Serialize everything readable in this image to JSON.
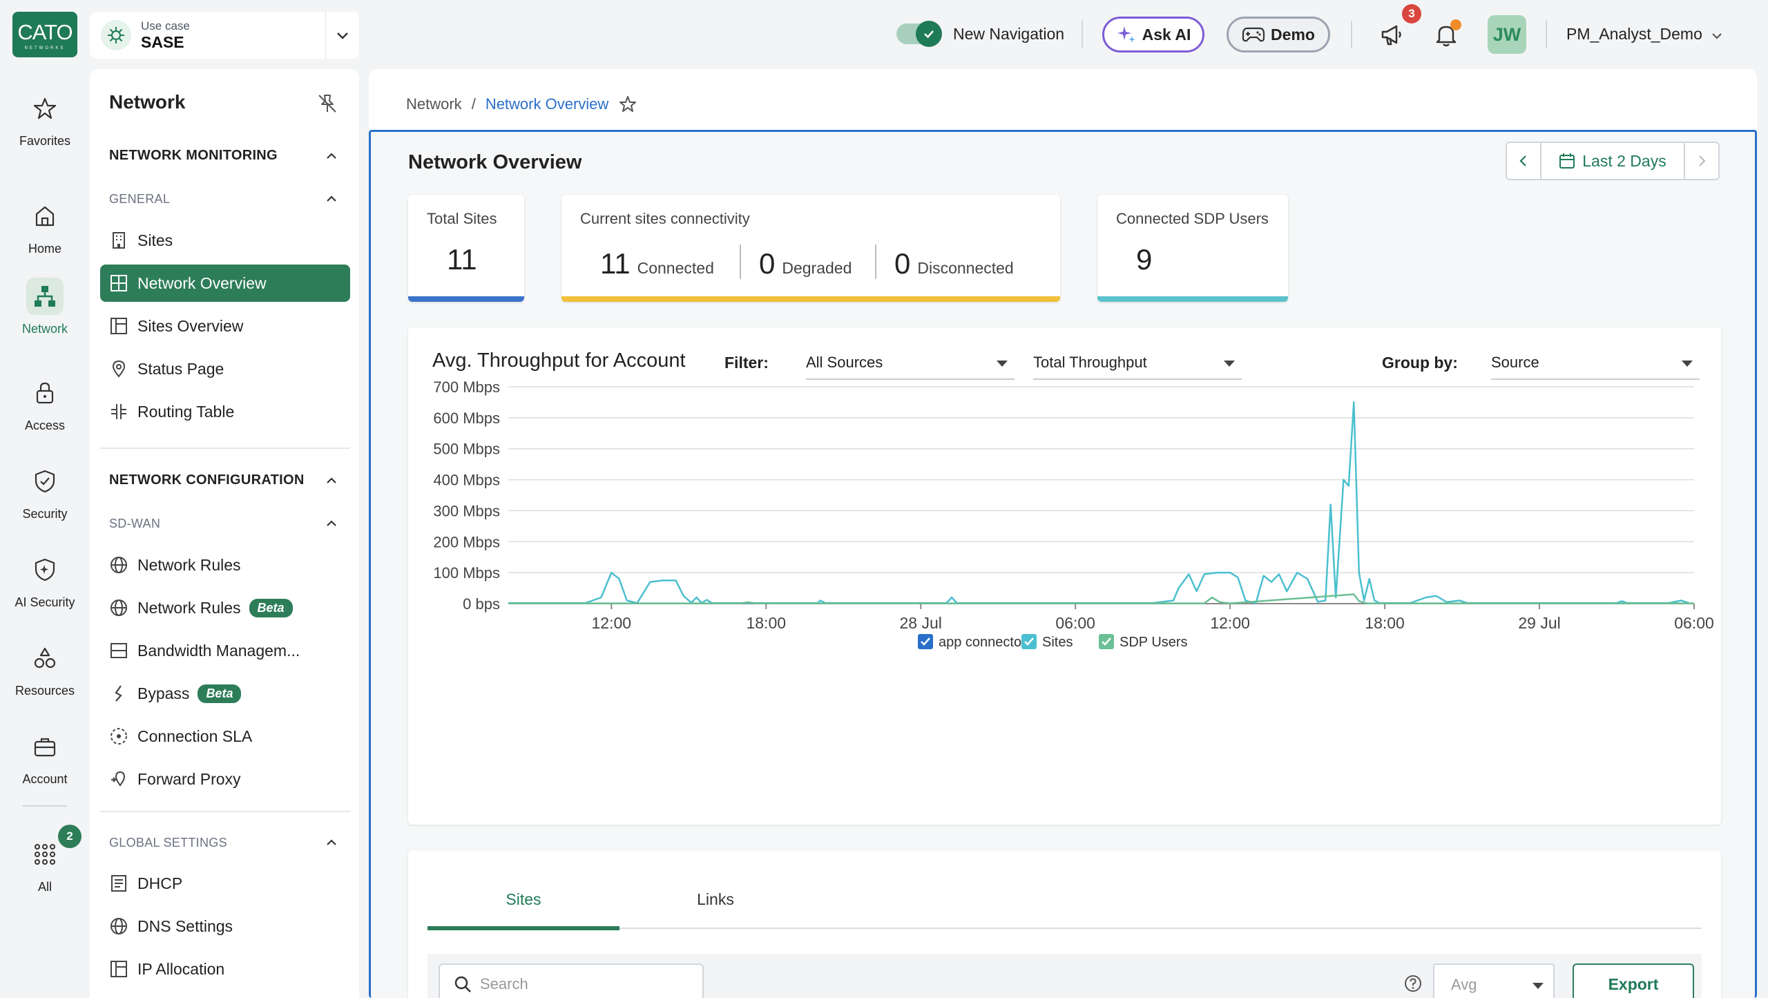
{
  "logo": {
    "text": "CATO",
    "sub": "NETWORKS"
  },
  "usecase": {
    "label": "Use case",
    "value": "SASE"
  },
  "header": {
    "new_navigation_label": "New Navigation",
    "ask_ai_label": "Ask AI",
    "demo_label": "Demo",
    "announcements_badge": "3",
    "avatar_initials": "JW",
    "username": "PM_Analyst_Demo"
  },
  "rail": {
    "items": [
      {
        "label": "Favorites",
        "icon": "star-icon"
      },
      {
        "label": "Home",
        "icon": "home-icon"
      },
      {
        "label": "Network",
        "icon": "network-icon"
      },
      {
        "label": "Access",
        "icon": "lock-icon"
      },
      {
        "label": "Security",
        "icon": "shield-icon"
      },
      {
        "label": "AI Security",
        "icon": "ai-shield-icon"
      },
      {
        "label": "Resources",
        "icon": "resources-icon"
      },
      {
        "label": "Account",
        "icon": "briefcase-icon"
      },
      {
        "label": "All",
        "icon": "grid-icon"
      }
    ],
    "all_badge": "2"
  },
  "sidebar": {
    "title": "Network",
    "monitoring_heading": "NETWORK MONITORING",
    "general_heading": "GENERAL",
    "general_items": [
      {
        "label": "Sites"
      },
      {
        "label": "Network Overview"
      },
      {
        "label": "Sites Overview"
      },
      {
        "label": "Status Page"
      },
      {
        "label": "Routing Table"
      }
    ],
    "config_heading": "NETWORK CONFIGURATION",
    "sdwan_heading": "SD-WAN",
    "sdwan_items": [
      {
        "label": "Network Rules"
      },
      {
        "label": "Network Rules",
        "badge": "Beta"
      },
      {
        "label": "Bandwidth Managem..."
      },
      {
        "label": "Bypass",
        "badge": "Beta"
      },
      {
        "label": "Connection SLA"
      },
      {
        "label": "Forward Proxy"
      }
    ],
    "global_heading": "GLOBAL SETTINGS",
    "global_items": [
      {
        "label": "DHCP"
      },
      {
        "label": "DNS Settings"
      },
      {
        "label": "IP Allocation"
      }
    ]
  },
  "breadcrumb": {
    "parent": "Network",
    "separator": "/",
    "current": "Network Overview"
  },
  "page": {
    "title": "Network Overview",
    "date_range": "Last 2 Days"
  },
  "cards": {
    "total_sites_title": "Total Sites",
    "total_sites_value": "11",
    "connectivity_title": "Current sites connectivity",
    "connected_value": "11",
    "connected_label": "Connected",
    "degraded_value": "0",
    "degraded_label": "Degraded",
    "disconnected_value": "0",
    "disconnected_label": "Disconnected",
    "sdp_title": "Connected SDP Users",
    "sdp_value": "9"
  },
  "throughput": {
    "title": "Avg. Throughput for Account",
    "filter_label": "Filter:",
    "filter_value": "All Sources",
    "metric_value": "Total Throughput",
    "groupby_label": "Group by:",
    "groupby_value": "Source"
  },
  "chart_data": {
    "type": "line",
    "title": "Avg. Throughput for Account",
    "ylabel": "",
    "xlabel": "",
    "ylim": [
      0,
      700
    ],
    "y_unit": "Mbps",
    "y_ticks": [
      "0 bps",
      "100 Mbps",
      "200 Mbps",
      "300 Mbps",
      "400 Mbps",
      "500 Mbps",
      "600 Mbps",
      "700 Mbps"
    ],
    "x_ticks": [
      "12:00",
      "18:00",
      "28 Jul",
      "06:00",
      "12:00",
      "18:00",
      "29 Jul",
      "06:00"
    ],
    "grid": true,
    "legend_position": "bottom",
    "series": [
      {
        "name": "app connector",
        "color": "#2a6fc9",
        "checked": true,
        "values": []
      },
      {
        "name": "Sites",
        "color": "#4bbfcf",
        "checked": true,
        "points_hours": [
          [
            0,
            2
          ],
          [
            3,
            2
          ],
          [
            3.6,
            20
          ],
          [
            4,
            100
          ],
          [
            4.3,
            80
          ],
          [
            4.6,
            10
          ],
          [
            5,
            2
          ],
          [
            5.5,
            70
          ],
          [
            6,
            75
          ],
          [
            6.5,
            75
          ],
          [
            6.8,
            25
          ],
          [
            7.1,
            3
          ],
          [
            7.3,
            20
          ],
          [
            7.5,
            2
          ],
          [
            7.7,
            12
          ],
          [
            7.9,
            2
          ],
          [
            9,
            2
          ],
          [
            12,
            2
          ],
          [
            12.1,
            10
          ],
          [
            12.3,
            2
          ],
          [
            17,
            2
          ],
          [
            17.2,
            20
          ],
          [
            17.4,
            2
          ],
          [
            25,
            2
          ],
          [
            25.8,
            10
          ],
          [
            26,
            50
          ],
          [
            26.4,
            95
          ],
          [
            26.7,
            40
          ],
          [
            27,
            95
          ],
          [
            27.5,
            100
          ],
          [
            28,
            100
          ],
          [
            28.3,
            85
          ],
          [
            28.6,
            10
          ],
          [
            28.8,
            5
          ],
          [
            29,
            2
          ],
          [
            29.3,
            90
          ],
          [
            29.6,
            70
          ],
          [
            29.9,
            95
          ],
          [
            30.2,
            40
          ],
          [
            30.6,
            100
          ],
          [
            31,
            80
          ],
          [
            31.4,
            6
          ],
          [
            31.7,
            10
          ],
          [
            31.9,
            320
          ],
          [
            32.1,
            20
          ],
          [
            32.4,
            400
          ],
          [
            32.6,
            380
          ],
          [
            32.8,
            650
          ],
          [
            33,
            100
          ],
          [
            33.2,
            10
          ],
          [
            33.4,
            80
          ],
          [
            33.6,
            10
          ],
          [
            33.8,
            2
          ],
          [
            35,
            2
          ],
          [
            35.6,
            20
          ],
          [
            36,
            25
          ],
          [
            36.4,
            5
          ],
          [
            36.9,
            10
          ],
          [
            37.2,
            2
          ],
          [
            43,
            2
          ],
          [
            43.2,
            8
          ],
          [
            43.4,
            2
          ],
          [
            45,
            2
          ],
          [
            45.5,
            10
          ],
          [
            45.8,
            2
          ]
        ]
      },
      {
        "name": "SDP Users",
        "color": "#6bbf94",
        "checked": true,
        "points_hours": [
          [
            0,
            1
          ],
          [
            9,
            1
          ],
          [
            9.3,
            5
          ],
          [
            9.6,
            1
          ],
          [
            27,
            1
          ],
          [
            27.3,
            20
          ],
          [
            27.6,
            5
          ],
          [
            28,
            1
          ],
          [
            32.8,
            30
          ],
          [
            33,
            8
          ],
          [
            33.3,
            1
          ],
          [
            46,
            1
          ]
        ]
      }
    ]
  },
  "table_section": {
    "tabs": [
      {
        "label": "Sites"
      },
      {
        "label": "Links"
      }
    ],
    "search_placeholder": "Search",
    "aggregate": "Avg",
    "export_label": "Export"
  }
}
